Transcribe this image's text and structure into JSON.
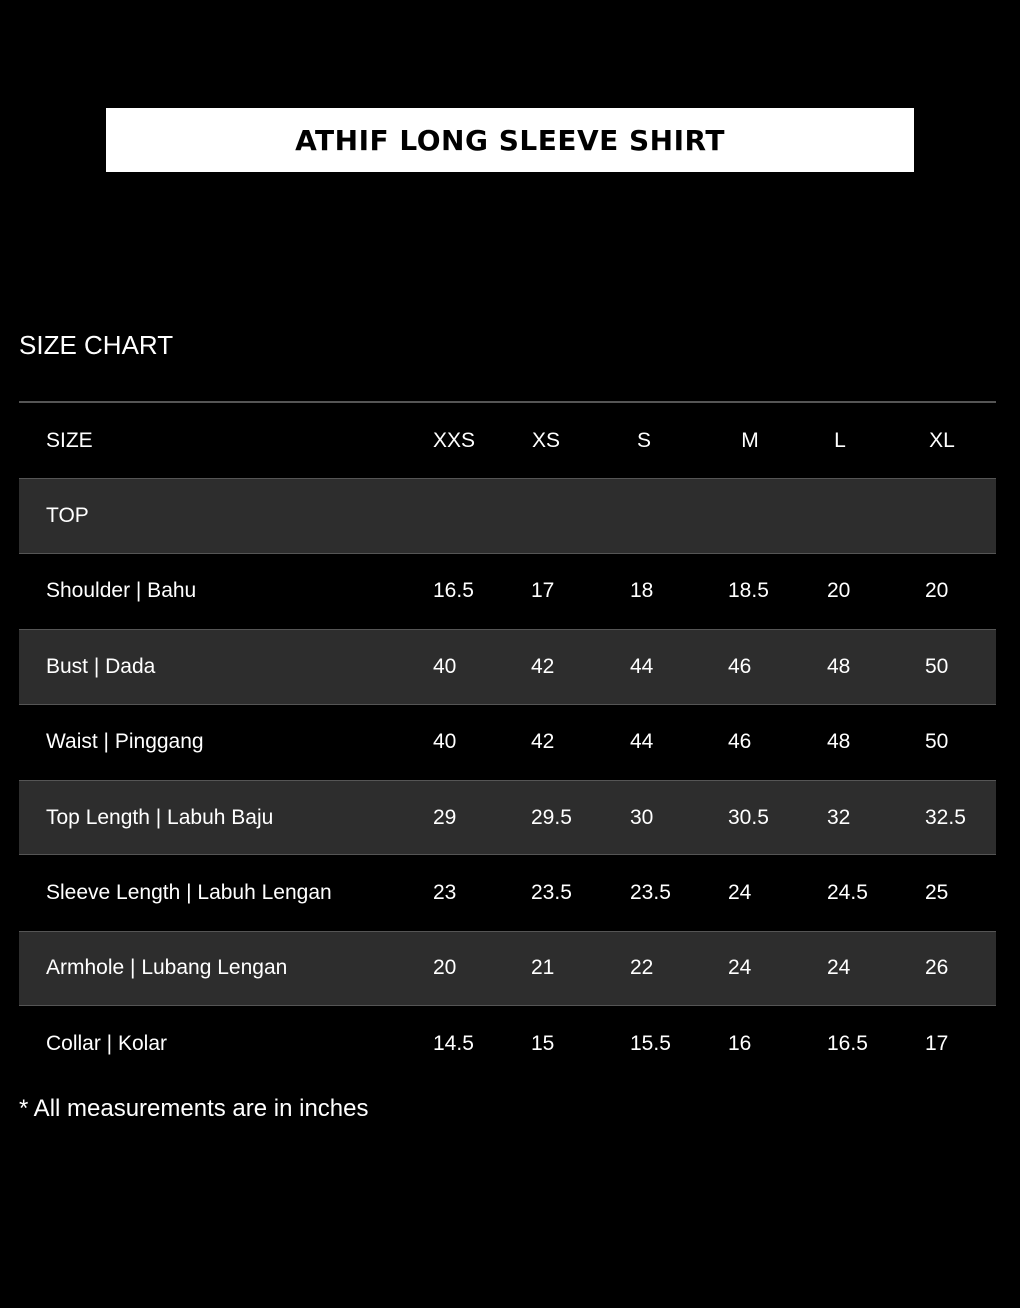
{
  "title": "ATHIF LONG SLEEVE SHIRT",
  "section_title": "SIZE CHART",
  "table": {
    "header_label": "SIZE",
    "sizes": [
      "XXS",
      "XS",
      "S",
      "M",
      "L",
      "XL"
    ],
    "group_label": "TOP",
    "rows": [
      {
        "label": "Shoulder | Bahu",
        "values": [
          "16.5",
          "17",
          "18",
          "18.5",
          "20",
          "20"
        ]
      },
      {
        "label": "Bust | Dada",
        "values": [
          "40",
          "42",
          "44",
          "46",
          "48",
          "50"
        ]
      },
      {
        "label": "Waist | Pinggang",
        "values": [
          "40",
          "42",
          "44",
          "46",
          "48",
          "50"
        ]
      },
      {
        "label": "Top Length | Labuh Baju",
        "values": [
          "29",
          "29.5",
          "30",
          "30.5",
          "32",
          "32.5"
        ]
      },
      {
        "label": "Sleeve Length | Labuh Lengan",
        "values": [
          "23",
          "23.5",
          "23.5",
          "24",
          "24.5",
          "25"
        ]
      },
      {
        "label": "Armhole | Lubang Lengan",
        "values": [
          "20",
          "21",
          "22",
          "24",
          "24",
          "26"
        ]
      },
      {
        "label": "Collar | Kolar",
        "values": [
          "14.5",
          "15",
          "15.5",
          "16",
          "16.5",
          "17"
        ]
      }
    ]
  },
  "note": "* All measurements are in inches"
}
